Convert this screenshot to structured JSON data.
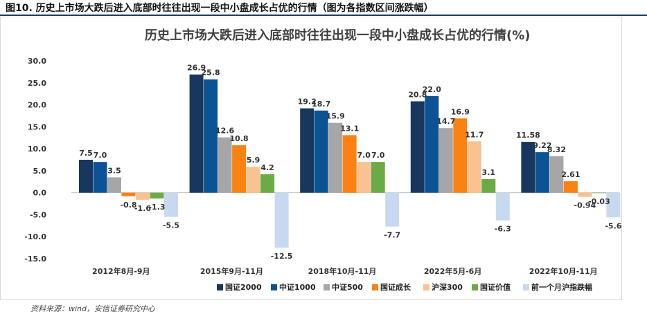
{
  "caption": "图10. 历史上市场大跌后进入底部时往往出现一段中小盘成长占优的行情（图为各指数区间涨跌幅）",
  "source": "资料来源：wind，安信证券研究中心",
  "chart_data": {
    "type": "bar",
    "title": "历史上市场大跌后进入底部时往往出现一段中小盘成长占优的行情(%)",
    "categories": [
      "2012年8月-9月",
      "2015年9月-11月",
      "2018年10月-11月",
      "2022年5月-6月",
      "2022年10月-11月"
    ],
    "ylim": [
      -15,
      30
    ],
    "yticks": [
      -15,
      -10,
      -5,
      0,
      5,
      10,
      15,
      20,
      25,
      30
    ],
    "ytick_labels": [
      "-15.0",
      "-10.0",
      "-5.0",
      "0.0",
      "5.0",
      "10.0",
      "15.0",
      "20.0",
      "25.0",
      "30.0"
    ],
    "legend_position": "bottom",
    "series": [
      {
        "name": "国证2000",
        "color": "#17375e",
        "values": [
          7.5,
          26.9,
          19.2,
          20.8,
          11.58
        ],
        "labels": [
          "7.5",
          "26.9",
          "19.2",
          "20.8",
          "11.58"
        ]
      },
      {
        "name": "中证1000",
        "color": "#0b5394",
        "values": [
          7.0,
          25.8,
          18.7,
          22.0,
          9.22
        ],
        "labels": [
          "7.0",
          "25.8",
          "18.7",
          "22.0",
          "9.22"
        ]
      },
      {
        "name": "中证500",
        "color": "#a6a6a6",
        "values": [
          3.5,
          12.6,
          15.9,
          14.7,
          8.32
        ],
        "labels": [
          "3.5",
          "12.6",
          "15.9",
          "14.7",
          "8.32"
        ]
      },
      {
        "name": "国证成长",
        "color": "#f98212",
        "values": [
          -0.8,
          10.8,
          13.1,
          16.9,
          2.61
        ],
        "labels": [
          "-0.8",
          "10.8",
          "13.1",
          "16.9",
          "2.61"
        ]
      },
      {
        "name": "沪深300",
        "color": "#f9c290",
        "values": [
          -1.6,
          5.9,
          7.0,
          11.7,
          -0.94
        ],
        "labels": [
          "-1.6",
          "5.9",
          "7.0",
          "11.7",
          "-0.94"
        ]
      },
      {
        "name": "国证价值",
        "color": "#6aab46",
        "values": [
          -1.3,
          4.2,
          7.0,
          3.1,
          -0.03
        ],
        "labels": [
          "-1.3",
          "4.2",
          "7.0",
          "3.1",
          "-0.03"
        ]
      },
      {
        "name": "前一个月沪指跌幅",
        "color": "#c6d9f0",
        "values": [
          -5.5,
          -12.5,
          -7.7,
          -6.3,
          -5.6
        ],
        "labels": [
          "-5.5",
          "-12.5",
          "-7.7",
          "-6.3",
          "-5.6"
        ]
      }
    ]
  }
}
